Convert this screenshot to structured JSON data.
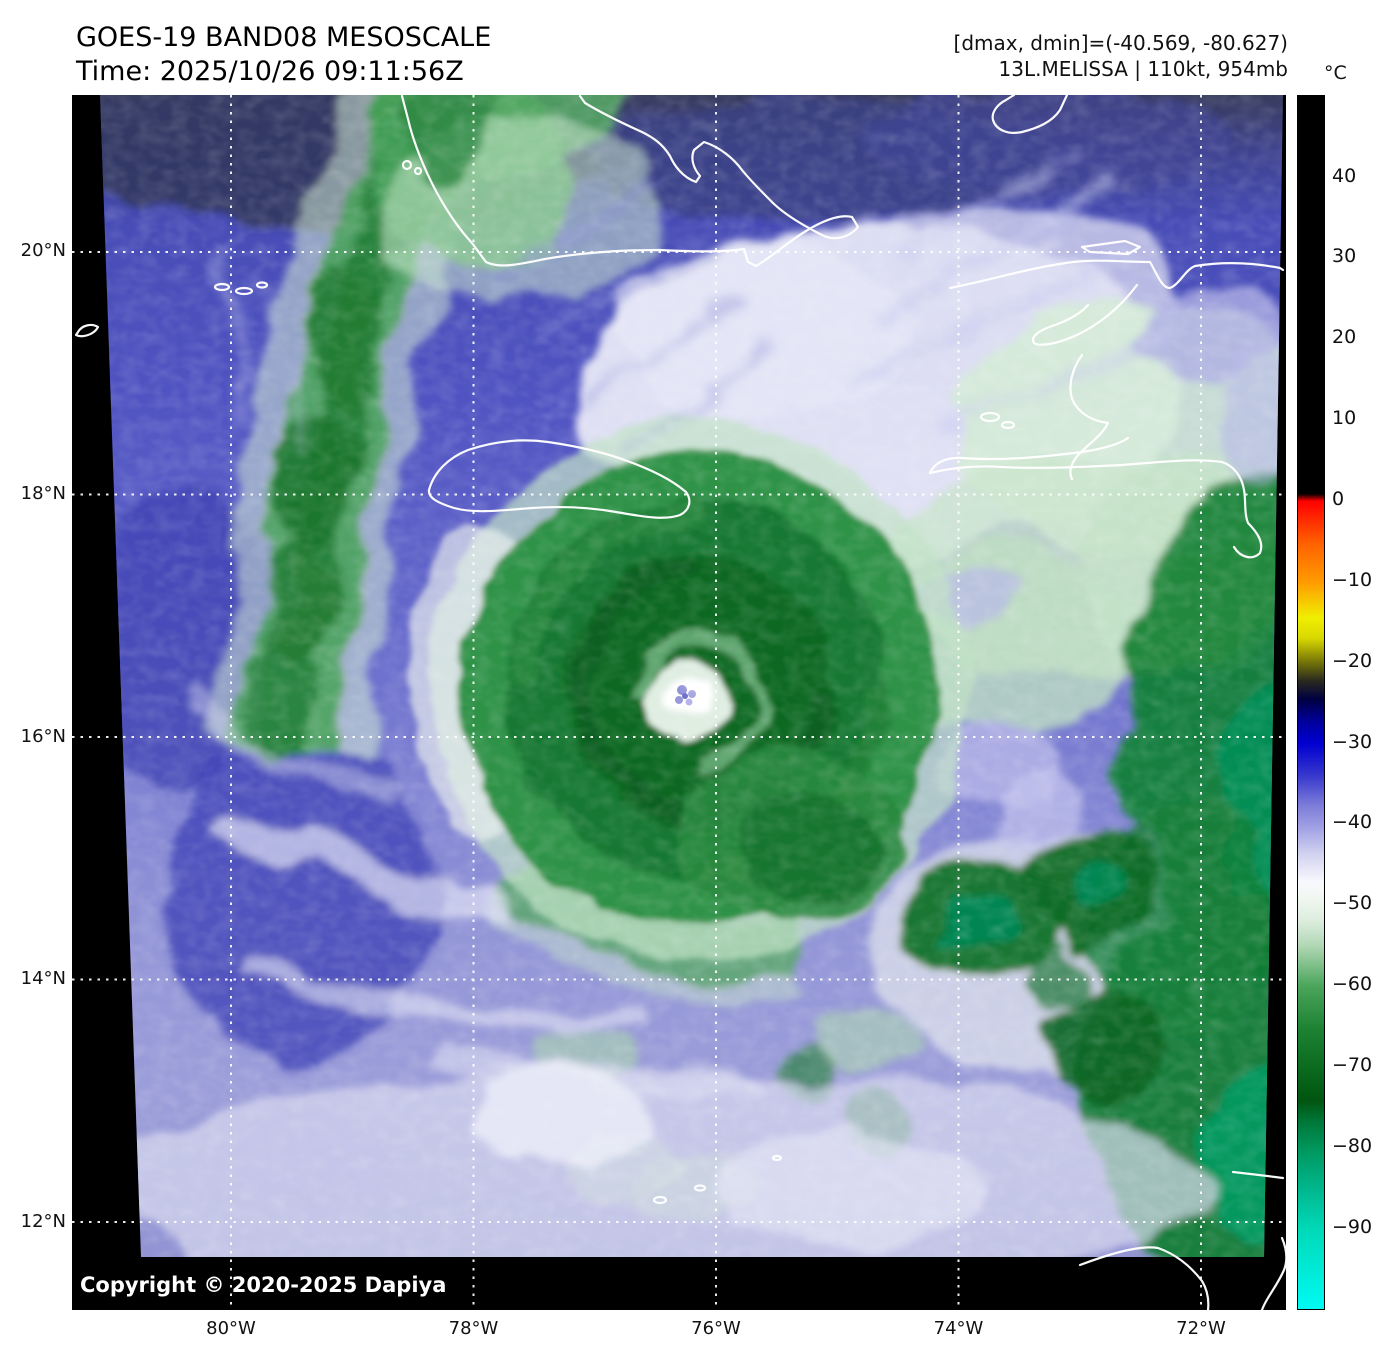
{
  "header": {
    "title": "GOES-19 BAND08 MESOSCALE",
    "time": "Time: 2025/10/26 09:11:56Z",
    "dmax_dmin": "[dmax, dmin]=(-40.569, -80.627)",
    "storm": "13L.MELISSA | 110kt, 954mb"
  },
  "map": {
    "copyright": "Copyright © 2020-2025 Dapiya"
  },
  "axes": {
    "lat_ticks": [
      {
        "label": "20°N",
        "lat": 20
      },
      {
        "label": "18°N",
        "lat": 18
      },
      {
        "label": "16°N",
        "lat": 16
      },
      {
        "label": "14°N",
        "lat": 14
      },
      {
        "label": "12°N",
        "lat": 12
      }
    ],
    "lon_ticks": [
      {
        "label": "80°W",
        "lon": -80
      },
      {
        "label": "78°W",
        "lon": -78
      },
      {
        "label": "76°W",
        "lon": -76
      },
      {
        "label": "74°W",
        "lon": -74
      },
      {
        "label": "72°W",
        "lon": -72
      }
    ]
  },
  "colorbar": {
    "unit": "°C",
    "ticks": [
      {
        "label": "40",
        "value": 40
      },
      {
        "label": "30",
        "value": 30
      },
      {
        "label": "20",
        "value": 20
      },
      {
        "label": "10",
        "value": 10
      },
      {
        "label": "0",
        "value": 0
      },
      {
        "label": "−10",
        "value": -10
      },
      {
        "label": "−20",
        "value": -20
      },
      {
        "label": "−30",
        "value": -30
      },
      {
        "label": "−40",
        "value": -40
      },
      {
        "label": "−50",
        "value": -50
      },
      {
        "label": "−60",
        "value": -60
      },
      {
        "label": "−70",
        "value": -70
      },
      {
        "label": "−80",
        "value": -80
      },
      {
        "label": "−90",
        "value": -90
      }
    ],
    "range_top_c": 50,
    "range_bottom_c": -100,
    "stops": [
      {
        "t": 0.0,
        "c": "#000000"
      },
      {
        "t": 0.328,
        "c": "#000000"
      },
      {
        "t": 0.334,
        "c": "#ff0000"
      },
      {
        "t": 0.37,
        "c": "#ff6400"
      },
      {
        "t": 0.401,
        "c": "#ff9c00"
      },
      {
        "t": 0.43,
        "c": "#f0ee00"
      },
      {
        "t": 0.447,
        "c": "#d8d800"
      },
      {
        "t": 0.468,
        "c": "#6e6e0a"
      },
      {
        "t": 0.482,
        "c": "#2a2a1e"
      },
      {
        "t": 0.497,
        "c": "#000041"
      },
      {
        "t": 0.517,
        "c": "#0000a0"
      },
      {
        "t": 0.534,
        "c": "#0000d2"
      },
      {
        "t": 0.56,
        "c": "#3737cd"
      },
      {
        "t": 0.585,
        "c": "#7d7dd9"
      },
      {
        "t": 0.601,
        "c": "#9c9ce3"
      },
      {
        "t": 0.625,
        "c": "#d2d2f0"
      },
      {
        "t": 0.648,
        "c": "#f8f8fd"
      },
      {
        "t": 0.66,
        "c": "#f2f7f2"
      },
      {
        "t": 0.68,
        "c": "#dcedde"
      },
      {
        "t": 0.7,
        "c": "#b2d8b6"
      },
      {
        "t": 0.734,
        "c": "#4aa55a"
      },
      {
        "t": 0.77,
        "c": "#1d8132"
      },
      {
        "t": 0.801,
        "c": "#0b6b1f"
      },
      {
        "t": 0.828,
        "c": "#015510"
      },
      {
        "t": 0.845,
        "c": "#007637"
      },
      {
        "t": 0.868,
        "c": "#00965d"
      },
      {
        "t": 0.9,
        "c": "#00b68c"
      },
      {
        "t": 0.935,
        "c": "#00d9b8"
      },
      {
        "t": 1.0,
        "c": "#00fbf3"
      }
    ]
  }
}
